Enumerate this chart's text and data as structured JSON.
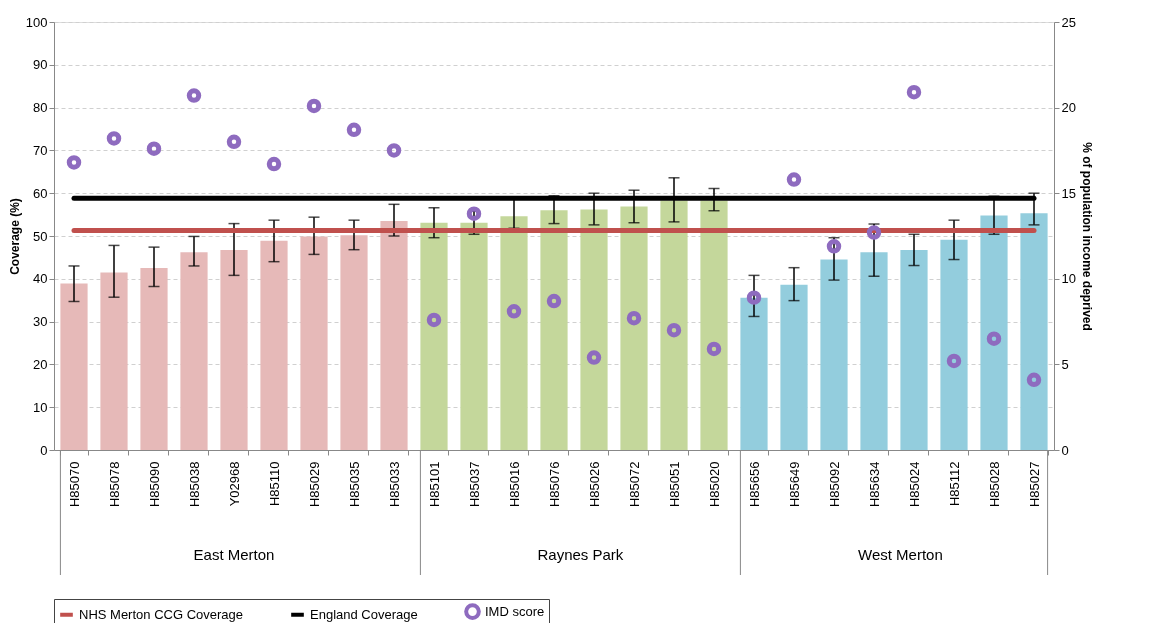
{
  "chart_data": {
    "type": "bar",
    "ylabel": "Coverage (%)",
    "y2label": "% of population income deprived",
    "categories": [
      "H85070",
      "H85078",
      "H85090",
      "H85038",
      "Y02968",
      "H85110",
      "H85029",
      "H85035",
      "H85033",
      "H85101",
      "H85037",
      "H85016",
      "H85076",
      "H85026",
      "H85072",
      "H85051",
      "H85020",
      "H85656",
      "H85649",
      "H85092",
      "H85634",
      "H85024",
      "H85112",
      "H85028",
      "H85027"
    ],
    "series": [
      {
        "colors": [
          "#e6b9b8",
          "#e6b9b8",
          "#e6b9b8",
          "#e6b9b8",
          "#e6b9b8",
          "#e6b9b8",
          "#e6b9b8",
          "#e6b9b8",
          "#e6b9b8",
          "#c4d79b",
          "#c4d79b",
          "#c4d79b",
          "#c4d79b",
          "#c4d79b",
          "#c4d79b",
          "#c4d79b",
          "#c4d79b",
          "#93cddd",
          "#93cddd",
          "#93cddd",
          "#93cddd",
          "#93cddd",
          "#93cddd",
          "#93cddd",
          "#93cddd"
        ],
        "values": [
          38.9,
          41.5,
          42.5,
          46.2,
          46.7,
          48.9,
          49.9,
          50.2,
          53.5,
          53.1,
          53.1,
          54.6,
          56.0,
          56.2,
          56.9,
          58.3,
          58.3,
          35.6,
          38.6,
          44.5,
          46.2,
          46.7,
          49.1,
          54.8,
          55.3
        ],
        "errors": [
          [
            34.7,
            43.0
          ],
          [
            35.7,
            47.8
          ],
          [
            38.2,
            47.4
          ],
          [
            43.0,
            49.9
          ],
          [
            40.8,
            52.9
          ],
          [
            44.0,
            53.7
          ],
          [
            45.7,
            54.4
          ],
          [
            46.8,
            53.7
          ],
          [
            50.0,
            57.4
          ],
          [
            49.6,
            56.6
          ],
          [
            50.4,
            55.8
          ],
          [
            51.8,
            58.6
          ],
          [
            52.9,
            59.4
          ],
          [
            52.6,
            60.0
          ],
          [
            53.1,
            60.7
          ],
          [
            53.3,
            63.6
          ],
          [
            55.9,
            61.1
          ],
          [
            31.2,
            40.8
          ],
          [
            34.9,
            42.6
          ],
          [
            39.7,
            49.6
          ],
          [
            40.6,
            52.8
          ],
          [
            43.1,
            50.4
          ],
          [
            44.5,
            53.7
          ],
          [
            50.4,
            59.3
          ],
          [
            52.6,
            60.0
          ]
        ]
      },
      {
        "type": "line",
        "name": "NHS Merton CCG Coverage",
        "color": "#c0504d",
        "values": [
          51.3,
          51.3,
          51.3,
          51.3,
          51.3,
          51.3,
          51.3,
          51.3,
          51.3,
          51.3,
          51.3,
          51.3,
          51.3,
          51.3,
          51.3,
          51.3,
          51.3,
          51.3,
          51.3,
          51.3,
          51.3,
          51.3,
          51.3,
          51.3,
          51.3
        ]
      },
      {
        "type": "line",
        "name": "England Coverage",
        "color": "#000000",
        "values": [
          58.8,
          58.8,
          58.8,
          58.8,
          58.8,
          58.8,
          58.8,
          58.8,
          58.8,
          58.8,
          58.8,
          58.8,
          58.8,
          58.8,
          58.8,
          58.8,
          58.8,
          58.8,
          58.8,
          58.8,
          58.8,
          58.8,
          58.8,
          58.8,
          58.8
        ]
      },
      {
        "type": "scatter",
        "name": "IMD score",
        "color": "#8e6bbf",
        "axis": "y2",
        "values": [
          16.8,
          18.2,
          17.6,
          20.7,
          18.0,
          16.7,
          20.1,
          18.7,
          17.5,
          7.6,
          13.8,
          8.1,
          8.7,
          5.4,
          7.7,
          7.0,
          5.9,
          8.9,
          15.8,
          11.9,
          12.7,
          20.9,
          5.2,
          6.5,
          4.1
        ]
      }
    ],
    "ylim": [
      0,
      100
    ],
    "yticks": [
      0,
      10,
      20,
      30,
      40,
      50,
      60,
      70,
      80,
      90,
      100
    ],
    "y2lim": [
      0,
      25
    ],
    "y2ticks": [
      0,
      5,
      10,
      15,
      20,
      25
    ],
    "annotations": [
      "East Merton",
      "Raynes Park",
      "West Merton"
    ],
    "grid": "y",
    "legend": "bottom"
  }
}
